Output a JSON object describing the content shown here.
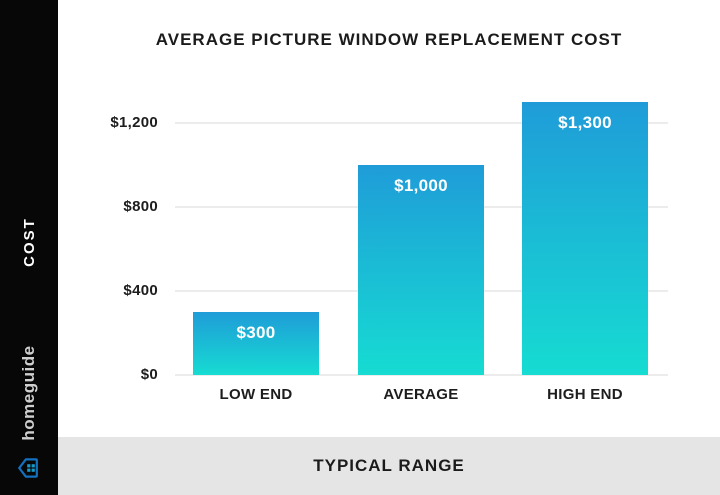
{
  "title": "AVERAGE PICTURE WINDOW REPLACEMENT COST",
  "sidebar": {
    "cost_label": "COST",
    "brand_name": "homeguide"
  },
  "footer": {
    "label": "TYPICAL RANGE"
  },
  "icons": {
    "brand_house_icon": "house-with-window-grid",
    "brand_icon_outline_color": "#1371c0",
    "brand_icon_pane_color": "#189ac9"
  },
  "colors": {
    "sidebar_bg": "#070707",
    "footer_bg": "#e5e5e5",
    "text_dark": "#1b1b1b",
    "bar_label_text": "#ffffff"
  },
  "chart_data": {
    "type": "bar",
    "title": "AVERAGE PICTURE WINDOW REPLACEMENT COST",
    "categories": [
      "LOW END",
      "AVERAGE",
      "HIGH END"
    ],
    "values": [
      300,
      1000,
      1300
    ],
    "value_labels": [
      "$300",
      "$1,000",
      "$1,300"
    ],
    "xlabel": "TYPICAL RANGE",
    "ylabel": "COST",
    "ylim": [
      0,
      1300
    ],
    "y_ticks": [
      {
        "value": 0,
        "label": "$0"
      },
      {
        "value": 400,
        "label": "$400"
      },
      {
        "value": 800,
        "label": "$800"
      },
      {
        "value": 1200,
        "label": "$1,200"
      }
    ],
    "grid": true,
    "legend": false,
    "bar_gradient_top": "#1f9cd8",
    "bar_gradient_bottom": "#16dcd2",
    "gridline_color": "#ececec"
  }
}
